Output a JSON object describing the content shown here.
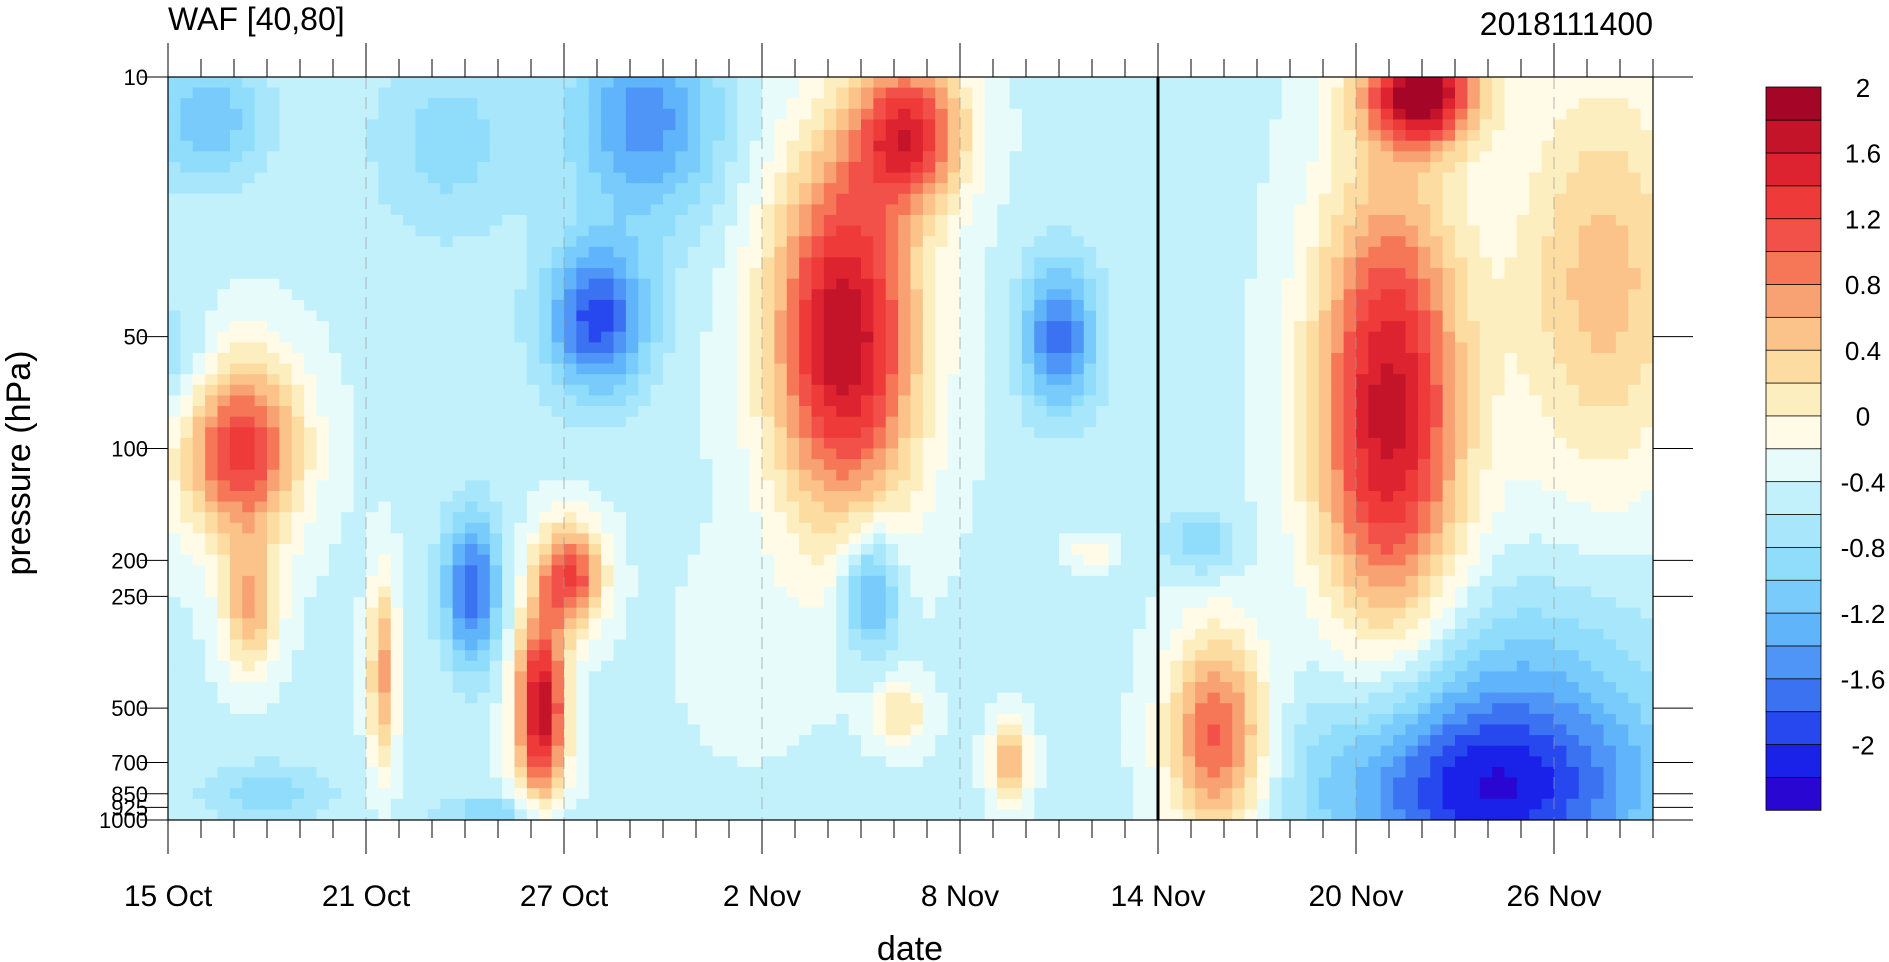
{
  "chart_data": {
    "type": "heatmap",
    "title_left": "WAF [40,80]",
    "title_right": "2018111400",
    "xlabel": "date",
    "ylabel": "pressure (hPa)",
    "x_ticks": [
      {
        "day": 0,
        "label": "15 Oct"
      },
      {
        "day": 6,
        "label": "21 Oct"
      },
      {
        "day": 12,
        "label": "27 Oct"
      },
      {
        "day": 18,
        "label": "2 Nov"
      },
      {
        "day": 24,
        "label": "8 Nov"
      },
      {
        "day": 30,
        "label": "14 Nov"
      },
      {
        "day": 36,
        "label": "20 Nov"
      },
      {
        "day": 42,
        "label": "26 Nov"
      }
    ],
    "x_range_days": [
      0,
      45
    ],
    "y_ticks": [
      {
        "p": 10,
        "label": "10"
      },
      {
        "p": 50,
        "label": "50"
      },
      {
        "p": 100,
        "label": "100"
      },
      {
        "p": 200,
        "label": "200"
      },
      {
        "p": 250,
        "label": "250"
      },
      {
        "p": 500,
        "label": "500"
      },
      {
        "p": 700,
        "label": "700"
      },
      {
        "p": 850,
        "label": "850"
      },
      {
        "p": 925,
        "label": "925"
      },
      {
        "p": 1000,
        "label": "1000"
      }
    ],
    "y_scale": "log",
    "y_range": [
      1000,
      10
    ],
    "vertical_marker_day": 30,
    "colorbar": {
      "levels": [
        -2.2,
        -2.0,
        -1.8,
        -1.6,
        -1.4,
        -1.2,
        -1.0,
        -0.8,
        -0.6,
        -0.4,
        -0.2,
        0.0,
        0.2,
        0.4,
        0.6,
        0.8,
        1.0,
        1.2,
        1.4,
        1.6,
        1.8,
        2.0
      ],
      "colors": [
        "#2a06d2",
        "#1a22ea",
        "#2748ee",
        "#3a72f2",
        "#4e95f7",
        "#5fb4fa",
        "#78cbfb",
        "#8fdcfb",
        "#a8e7fb",
        "#c2f0fb",
        "#e8fbfb",
        "#fffbe6",
        "#fdeec0",
        "#fcdcA0",
        "#fbc389",
        "#f8a172",
        "#f57757",
        "#f2514a",
        "#ef3a3a",
        "#dd2230",
        "#c4142a",
        "#a50526"
      ],
      "labels": [
        {
          "value": 2.0,
          "text": "2"
        },
        {
          "value": 1.6,
          "text": "1.6"
        },
        {
          "value": 1.2,
          "text": "1.2"
        },
        {
          "value": 0.8,
          "text": "0.8"
        },
        {
          "value": 0.4,
          "text": "0.4"
        },
        {
          "value": 0.0,
          "text": "0"
        },
        {
          "value": -0.4,
          "text": "-0.4"
        },
        {
          "value": -0.8,
          "text": "-0.8"
        },
        {
          "value": -1.2,
          "text": "-1.2"
        },
        {
          "value": -1.6,
          "text": "-1.6"
        },
        {
          "value": -2.0,
          "text": "-2"
        }
      ]
    },
    "features": [
      {
        "day": 0.0,
        "p": 60,
        "value": -0.9,
        "sx": 1.2,
        "sy": 0.12
      },
      {
        "day": 1.2,
        "p": 13,
        "value": -1.2,
        "sx": 1.2,
        "sy": 0.12
      },
      {
        "day": 2.2,
        "p": 100,
        "value": 1.3,
        "sx": 1.3,
        "sy": 0.18
      },
      {
        "day": 2.5,
        "p": 270,
        "value": 0.6,
        "sx": 0.6,
        "sy": 0.12
      },
      {
        "day": 3.0,
        "p": 850,
        "value": -0.9,
        "sx": 1.4,
        "sy": 0.06
      },
      {
        "day": 6.5,
        "p": 400,
        "value": 0.7,
        "sx": 0.3,
        "sy": 0.18
      },
      {
        "day": 8.5,
        "p": 15,
        "value": -0.9,
        "sx": 1.6,
        "sy": 0.18
      },
      {
        "day": 9.2,
        "p": 240,
        "value": -1.8,
        "sx": 0.6,
        "sy": 0.14
      },
      {
        "day": 10.0,
        "p": 950,
        "value": -1.0,
        "sx": 1.3,
        "sy": 0.03
      },
      {
        "day": 11.3,
        "p": 500,
        "value": 1.8,
        "sx": 0.55,
        "sy": 0.18
      },
      {
        "day": 12.2,
        "p": 220,
        "value": 1.2,
        "sx": 0.7,
        "sy": 0.1
      },
      {
        "day": 13.0,
        "p": 45,
        "value": -1.9,
        "sx": 1.1,
        "sy": 0.14
      },
      {
        "day": 14.5,
        "p": 13,
        "value": -1.5,
        "sx": 1.6,
        "sy": 0.2
      },
      {
        "day": 17.5,
        "p": 350,
        "value": -0.3,
        "sx": 1.5,
        "sy": 0.2
      },
      {
        "day": 20.5,
        "p": 50,
        "value": 1.8,
        "sx": 1.6,
        "sy": 0.35
      },
      {
        "day": 22.5,
        "p": 14,
        "value": 1.3,
        "sx": 1.2,
        "sy": 0.14
      },
      {
        "day": 21.3,
        "p": 240,
        "value": -1.5,
        "sx": 0.6,
        "sy": 0.12
      },
      {
        "day": 22.2,
        "p": 520,
        "value": 0.2,
        "sx": 0.6,
        "sy": 0.06
      },
      {
        "day": 25.5,
        "p": 700,
        "value": 0.6,
        "sx": 0.4,
        "sy": 0.08
      },
      {
        "day": 27.0,
        "p": 50,
        "value": -1.7,
        "sx": 0.8,
        "sy": 0.14
      },
      {
        "day": 28.0,
        "p": 190,
        "value": 0.0,
        "sx": 0.5,
        "sy": 0.03
      },
      {
        "day": 31.8,
        "p": 600,
        "value": 1.1,
        "sx": 1.1,
        "sy": 0.2
      },
      {
        "day": 31.3,
        "p": 180,
        "value": -1.0,
        "sx": 0.8,
        "sy": 0.06
      },
      {
        "day": 37.0,
        "p": 80,
        "value": 1.7,
        "sx": 1.6,
        "sy": 0.45
      },
      {
        "day": 38.0,
        "p": 11,
        "value": 1.9,
        "sx": 1.2,
        "sy": 0.1
      },
      {
        "day": 43.5,
        "p": 35,
        "value": 0.5,
        "sx": 2.0,
        "sy": 0.4
      },
      {
        "day": 40.0,
        "p": 850,
        "value": -2.1,
        "sx": 3.5,
        "sy": 0.18
      },
      {
        "day": 40.5,
        "p": 400,
        "value": -1.0,
        "sx": 3.5,
        "sy": 0.2
      }
    ]
  }
}
